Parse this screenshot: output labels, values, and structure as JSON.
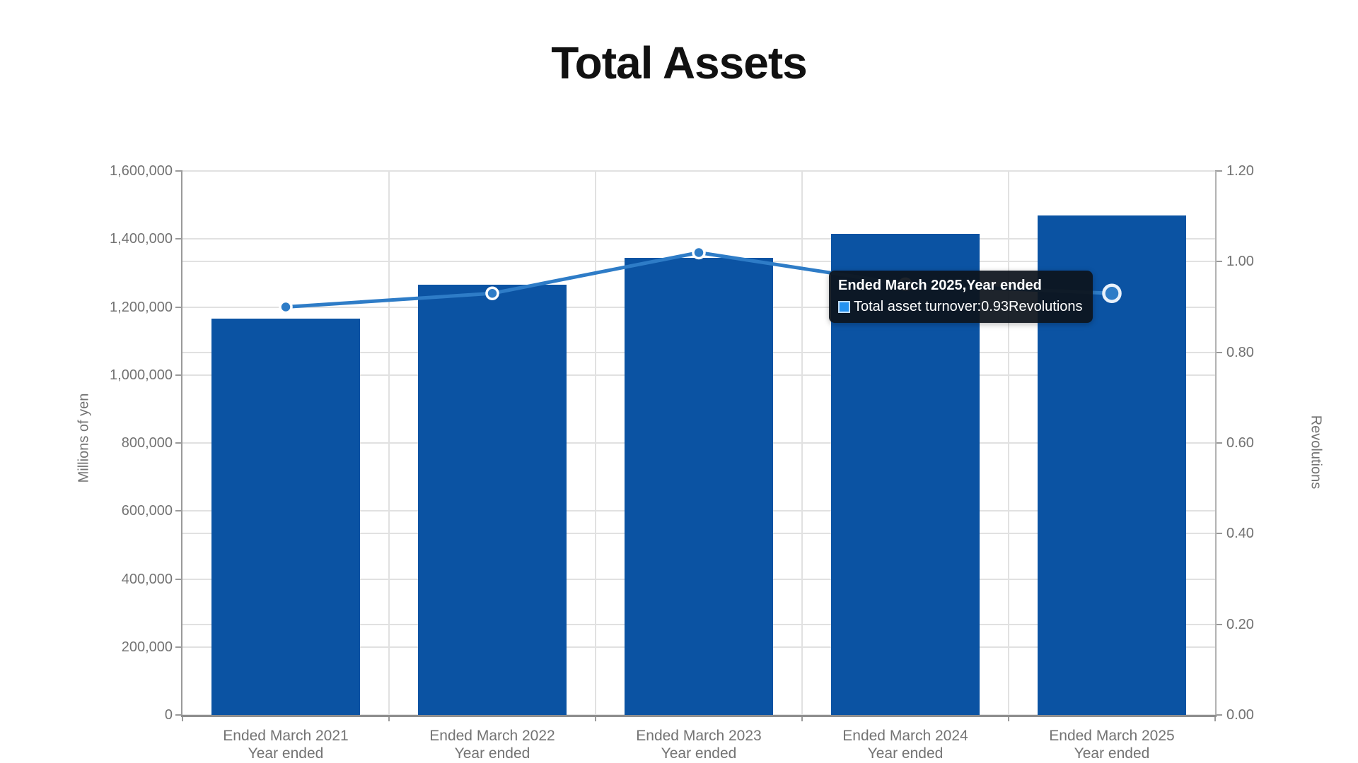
{
  "title": "Total Assets",
  "chart_data": {
    "type": "bar",
    "subtype": "combo-bar-line-dual-axis",
    "title": "Total Assets",
    "categories": [
      {
        "label": "Ended March 2021",
        "sublabel": "Year ended"
      },
      {
        "label": "Ended March 2022",
        "sublabel": "Year ended"
      },
      {
        "label": "Ended March 2023",
        "sublabel": "Year ended"
      },
      {
        "label": "Ended March 2024",
        "sublabel": "Year ended"
      },
      {
        "label": "Ended March 2025",
        "sublabel": "Year ended"
      }
    ],
    "series": [
      {
        "name": "Total Assets",
        "type": "bar",
        "axis": "left",
        "unit": "Millions of yen",
        "values": [
          1165000,
          1265000,
          1345000,
          1415000,
          1470000
        ]
      },
      {
        "name": "Total asset turnover",
        "type": "line",
        "axis": "right",
        "unit": "Revolutions",
        "values": [
          0.9,
          0.93,
          1.02,
          0.95,
          0.93
        ]
      }
    ],
    "left_axis": {
      "title": "Millions of yen",
      "min": 0,
      "max": 1600000,
      "tick_step": 200000,
      "tick_labels": [
        "0",
        "200,000",
        "400,000",
        "600,000",
        "800,000",
        "1,000,000",
        "1,200,000",
        "1,400,000",
        "1,600,000"
      ]
    },
    "right_axis": {
      "title": "Revolutions",
      "min": 0,
      "max": 1.2,
      "tick_step": 0.2,
      "tick_labels": [
        "0.00",
        "0.20",
        "0.40",
        "0.60",
        "0.80",
        "1.00",
        "1.20"
      ]
    },
    "grid": "both-axes-horizontal-plus-category-vertical",
    "legend": "none",
    "hovered_point": {
      "series": "Total asset turnover",
      "category_index": 4
    }
  },
  "tooltip": {
    "title": "Ended March 2025,Year ended",
    "series_label": "Total asset turnover: ",
    "value": "0.93",
    "unit": "Revolutions"
  },
  "colors": {
    "bar_fill": "#0b53a3",
    "line_stroke": "#2e7cc7",
    "marker_fill": "#2e7cc7",
    "marker_ring": "#ffffff",
    "hover_ring": "#e9f1fa",
    "grid_line": "#e1e1e1",
    "axis_line": "#9a9a9a",
    "tick_text": "#737373",
    "title_text": "#111111",
    "tooltip_bg": "rgba(13,19,28,0.93)",
    "tooltip_swatch": "#2492ef"
  }
}
